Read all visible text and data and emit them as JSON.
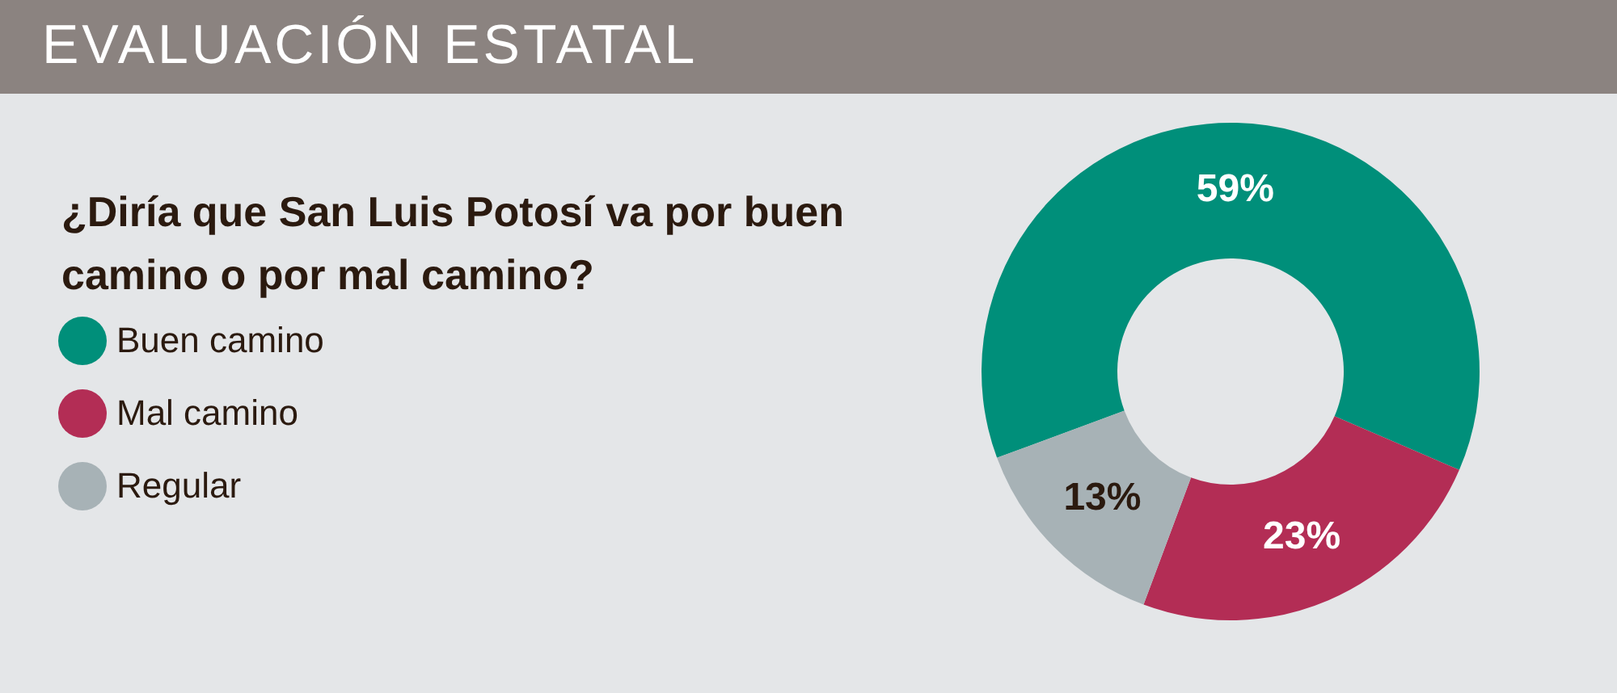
{
  "chart_data": {
    "type": "donut",
    "title": "EVALUACIÓN ESTATAL",
    "subtitle": "¿Diría que San Luis Potosí va por buen camino o por mal camino?",
    "categories": [
      "Buen camino",
      "Mal camino",
      "Regular"
    ],
    "values": [
      59,
      23,
      13
    ],
    "colors": [
      "#008f7a",
      "#b32d55",
      "#a7b2b6"
    ],
    "value_labels": [
      "59%",
      "23%",
      "13%"
    ],
    "legend": "left"
  }
}
